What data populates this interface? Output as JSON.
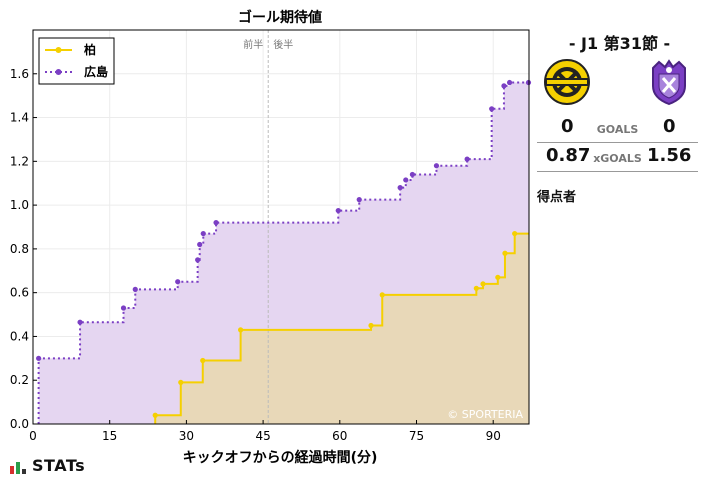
{
  "chart_data": {
    "type": "line",
    "title": "ゴール期待値",
    "xlabel": "キックオフからの経過時間(分)",
    "ylabel": "",
    "xlim": [
      0,
      97
    ],
    "ylim": [
      0,
      1.8
    ],
    "xticks": [
      0,
      15,
      30,
      45,
      60,
      75,
      90
    ],
    "yticks": [
      0.0,
      0.2,
      0.4,
      0.6,
      0.8,
      1.0,
      1.2,
      1.4,
      1.6
    ],
    "halftime_minute": 46,
    "halftime_labels": {
      "first": "前半",
      "second": "後半"
    },
    "watermark": "© SPORTERIA",
    "grid": true,
    "legend_position": "top-left",
    "series": [
      {
        "name": "柏",
        "color": "#f5d000",
        "fill": "#e8d8b8",
        "step": true,
        "points": [
          [
            23.9,
            0.04
          ],
          [
            28.9,
            0.19
          ],
          [
            33.2,
            0.29
          ],
          [
            40.6,
            0.43
          ],
          [
            66.1,
            0.45
          ],
          [
            68.3,
            0.59
          ],
          [
            86.7,
            0.62
          ],
          [
            88.0,
            0.64
          ],
          [
            90.9,
            0.67
          ],
          [
            92.3,
            0.78
          ],
          [
            94.2,
            0.87
          ]
        ]
      },
      {
        "name": "広島",
        "color": "#7b3fc4",
        "fill": "#e5d6f1",
        "step": true,
        "points": [
          [
            1.1,
            0.3
          ],
          [
            9.2,
            0.465
          ],
          [
            17.7,
            0.53
          ],
          [
            20.0,
            0.615
          ],
          [
            28.3,
            0.65
          ],
          [
            32.2,
            0.75
          ],
          [
            32.6,
            0.82
          ],
          [
            33.3,
            0.87
          ],
          [
            35.8,
            0.92
          ],
          [
            59.7,
            0.975
          ],
          [
            63.8,
            1.025
          ],
          [
            71.8,
            1.08
          ],
          [
            72.9,
            1.115
          ],
          [
            74.2,
            1.14
          ],
          [
            78.9,
            1.18
          ],
          [
            84.9,
            1.21
          ],
          [
            89.7,
            1.44
          ],
          [
            92.1,
            1.545
          ],
          [
            93.2,
            1.56
          ],
          [
            96.9,
            1.56
          ]
        ]
      }
    ]
  },
  "match": {
    "title": "-  J1 第31節  -",
    "home": {
      "name": "柏",
      "goals": "0",
      "xgoals": "0.87",
      "crest_icon": "kashiwa-reysol-crest"
    },
    "away": {
      "name": "広島",
      "goals": "0",
      "xgoals": "1.56",
      "crest_icon": "sanfrecce-hiroshima-crest"
    },
    "goals_label": "GOALS",
    "xgoals_label": "xGOALS",
    "scorers_label": "得点者"
  },
  "brand": {
    "logo_text": "STATs"
  }
}
